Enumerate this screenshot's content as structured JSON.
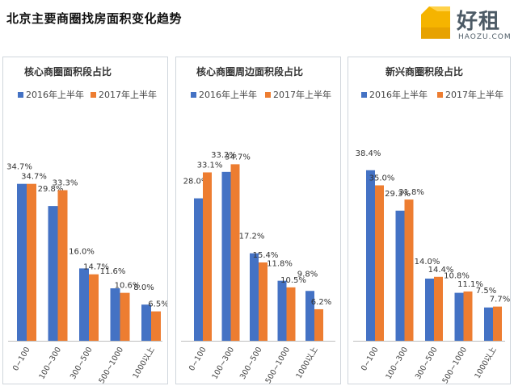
{
  "title": "北京主要商圈找房面积变化趋势",
  "logo": {
    "name": "好租",
    "sub": "HAOZU.COM",
    "icon": "haozu-logo-icon"
  },
  "colors": {
    "s2016": "#4472c4",
    "s2017": "#ed7d31",
    "axis": "#bfbfbf",
    "label": "#333333"
  },
  "chart_data": [
    {
      "type": "bar",
      "title": "核心商圈面积段占比",
      "categories": [
        "0~100",
        "100~300",
        "300~500",
        "500~1000",
        "1000以上"
      ],
      "series": [
        {
          "name": "2016年上半年",
          "values": [
            34.7,
            29.8,
            16.0,
            11.6,
            8.0
          ]
        },
        {
          "name": "2017年上半年",
          "values": [
            34.7,
            33.3,
            14.7,
            10.6,
            6.5
          ]
        }
      ],
      "value_suffix": "%",
      "legend": "top"
    },
    {
      "type": "bar",
      "title": "核心商圈周边面积段占比",
      "categories": [
        "0~100",
        "100~300",
        "300~500",
        "500~1000",
        "1000以上"
      ],
      "series": [
        {
          "name": "2016年上半年",
          "values": [
            28.0,
            33.2,
            17.2,
            11.8,
            9.8
          ]
        },
        {
          "name": "2017年上半年",
          "values": [
            33.1,
            34.7,
            15.4,
            10.5,
            6.2
          ]
        }
      ],
      "value_suffix": "%",
      "legend": "top"
    },
    {
      "type": "bar",
      "title": "新兴商圈积段占比",
      "categories": [
        "0~100",
        "100~300",
        "300~500",
        "500~1000",
        "1000以上"
      ],
      "series": [
        {
          "name": "2016年上半年",
          "values": [
            38.4,
            29.3,
            14.0,
            10.8,
            7.5
          ]
        },
        {
          "name": "2017年上半年",
          "values": [
            35.0,
            31.8,
            14.4,
            11.1,
            7.7
          ]
        }
      ],
      "value_suffix": "%",
      "legend": "top"
    }
  ]
}
